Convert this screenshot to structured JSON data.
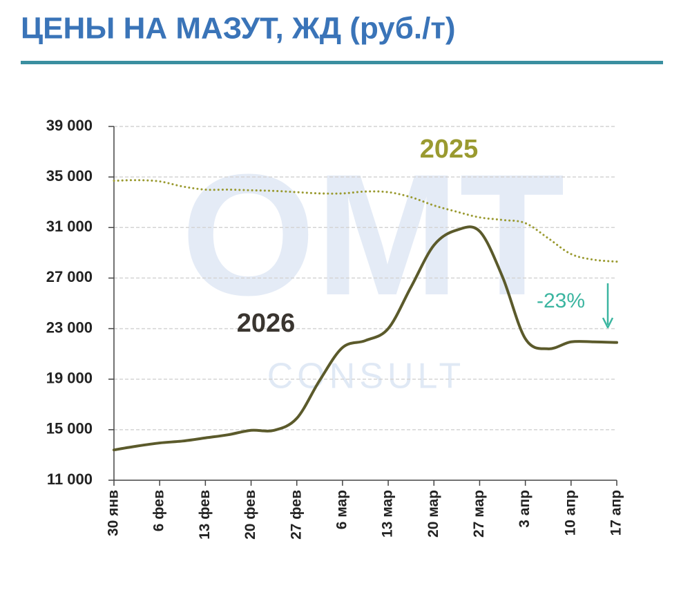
{
  "chart_data": {
    "type": "line",
    "title": "ЦЕНЫ НА МАЗУТ, ЖД (руб./т)",
    "categories": [
      "30 янв",
      null,
      "6 фев",
      null,
      "13 фев",
      null,
      "20 фев",
      null,
      "27 фев",
      null,
      "6 мар",
      null,
      "13 мар",
      null,
      "20 мар",
      null,
      "27 мар",
      null,
      "3 апр",
      null,
      "10 апр",
      null,
      "17 апр"
    ],
    "series": [
      {
        "name": "2025",
        "color": "#9a9a30",
        "style": "dotted",
        "values": [
          34700,
          34750,
          34650,
          34250,
          34000,
          34000,
          33950,
          33900,
          33800,
          33700,
          33700,
          33850,
          33800,
          33400,
          32750,
          32250,
          31800,
          31600,
          31350,
          30150,
          28900,
          28450,
          28300
        ]
      },
      {
        "name": "2026",
        "color": "#5b5a2b",
        "style": "solid",
        "values": [
          13400,
          13700,
          13950,
          14100,
          14350,
          14600,
          14950,
          14950,
          15900,
          18900,
          21500,
          22050,
          23000,
          26300,
          29600,
          30800,
          30700,
          27100,
          22200,
          21400,
          21950,
          21950,
          21900
        ]
      }
    ],
    "ylim": [
      11000,
      39000
    ],
    "yticks": [
      {
        "value": 11000,
        "label": "11 000"
      },
      {
        "value": 15000,
        "label": "15 000"
      },
      {
        "value": 19000,
        "label": "19 000"
      },
      {
        "value": 23000,
        "label": "23 000"
      },
      {
        "value": 27000,
        "label": "27 000"
      },
      {
        "value": 31000,
        "label": "31 000"
      },
      {
        "value": 35000,
        "label": "35 000"
      },
      {
        "value": 39000,
        "label": "39 000"
      }
    ],
    "grid": true,
    "annotation": "-23%",
    "watermark": [
      "OMT",
      "CONSULT"
    ]
  }
}
